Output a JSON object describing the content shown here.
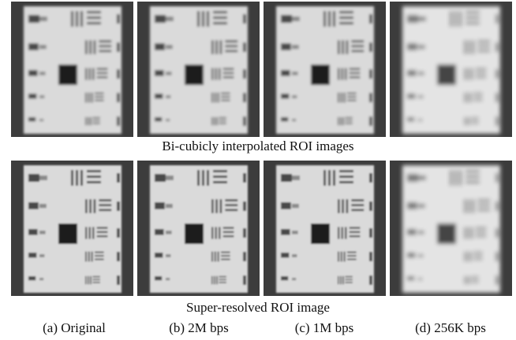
{
  "figure": {
    "row_captions": [
      "Bi-cubicly interpolated ROI images",
      "Super-resolved ROI image"
    ],
    "panel_labels": [
      "(a) Original",
      "(b) 2M bps",
      "(c) 1M bps",
      "(d) 256K bps"
    ]
  }
}
